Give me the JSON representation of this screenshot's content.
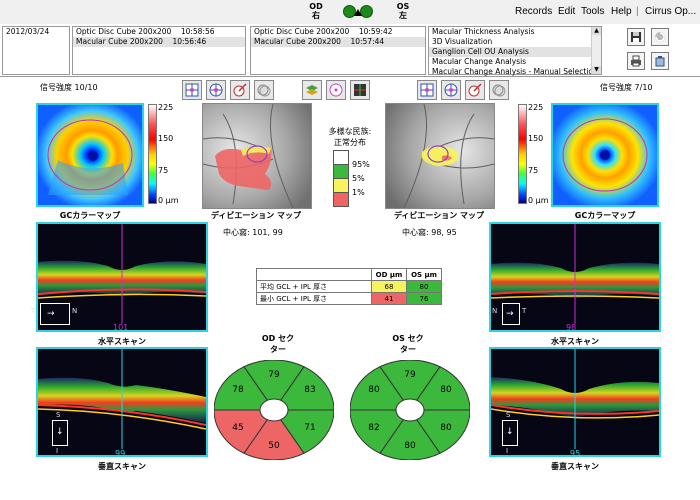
{
  "topbar": {
    "od_label": "OD",
    "od_sub": "右",
    "os_label": "OS",
    "os_sub": "左",
    "menu": [
      "Records",
      "Edit",
      "Tools",
      "Help",
      "|",
      "Cirrus Op..."
    ]
  },
  "header": {
    "date": "2012/03/24",
    "od_scans": [
      {
        "name": "Optic Disc Cube 200x200",
        "time": "10:58:56"
      },
      {
        "name": "Macular Cube 200x200",
        "time": "10:56:46"
      }
    ],
    "os_scans": [
      {
        "name": "Optic Disc Cube 200x200",
        "time": "10:59:42"
      },
      {
        "name": "Macular Cube 200x200",
        "time": "10:57:44"
      }
    ],
    "analyses": [
      "Macular Thickness Analysis",
      "3D Visualization",
      "Ganglion Cell OU Analysis",
      "Macular Change Analysis",
      "Macular Change Analysis - Manual Selection"
    ],
    "selected_analysis": 2
  },
  "od": {
    "signal_label": "信号強度",
    "signal_value": "10/10",
    "gc_map_label": "GCカラーマップ",
    "deviation_label": "ディビエーション マップ",
    "fovea_label": "中心窩:",
    "fovea_value": "101, 99",
    "hscan_label": "水平スキャン",
    "hscan_num": "101",
    "vscan_label": "垂直スキャン",
    "vscan_num": "99",
    "sector_title": "OD セク\nター",
    "sectors": {
      "top": "79",
      "top_right": "83",
      "bottom_right": "71",
      "bottom": "50",
      "bottom_left": "45",
      "top_left": "78"
    },
    "orient_h": [
      "T",
      "N"
    ],
    "orient_v": [
      "S",
      "I"
    ]
  },
  "os": {
    "signal_label": "信号強度",
    "signal_value": "7/10",
    "gc_map_label": "GCカラーマップ",
    "deviation_label": "ディビエーション マップ",
    "fovea_label": "中心窩:",
    "fovea_value": "98, 95",
    "hscan_label": "水平スキャン",
    "hscan_num": "98",
    "vscan_label": "垂直スキャン",
    "vscan_num": "95",
    "sector_title": "OS セク\nター",
    "sectors": {
      "top": "79",
      "top_right": "80",
      "bottom_right": "80",
      "bottom": "80",
      "bottom_left": "82",
      "top_left": "80"
    },
    "orient_h": [
      "N",
      "T"
    ],
    "orient_v": [
      "S",
      "I"
    ]
  },
  "colorbar": {
    "ticks": [
      "225",
      "150",
      "75",
      "0 μm"
    ]
  },
  "legend": {
    "title": "多様な民族:\n正常分布",
    "items": [
      "95%",
      "5%",
      "1%"
    ]
  },
  "gcl_table": {
    "headers": [
      "",
      "OD μm",
      "OS μm"
    ],
    "rows": [
      {
        "label": "平均 GCL + IPL 厚さ",
        "od": "68",
        "os": "80"
      },
      {
        "label": "最小 GCL + IPL 厚さ",
        "od": "41",
        "os": "76"
      }
    ]
  },
  "colors": {
    "normal_green": "#3cb83c",
    "borderline_yellow": "#f6f35c",
    "abnormal_red": "#ee6565",
    "white": "#ffffff",
    "scan_border_cyan": "#2ad4e0",
    "scan_border_magenta": "#d02bd0"
  }
}
